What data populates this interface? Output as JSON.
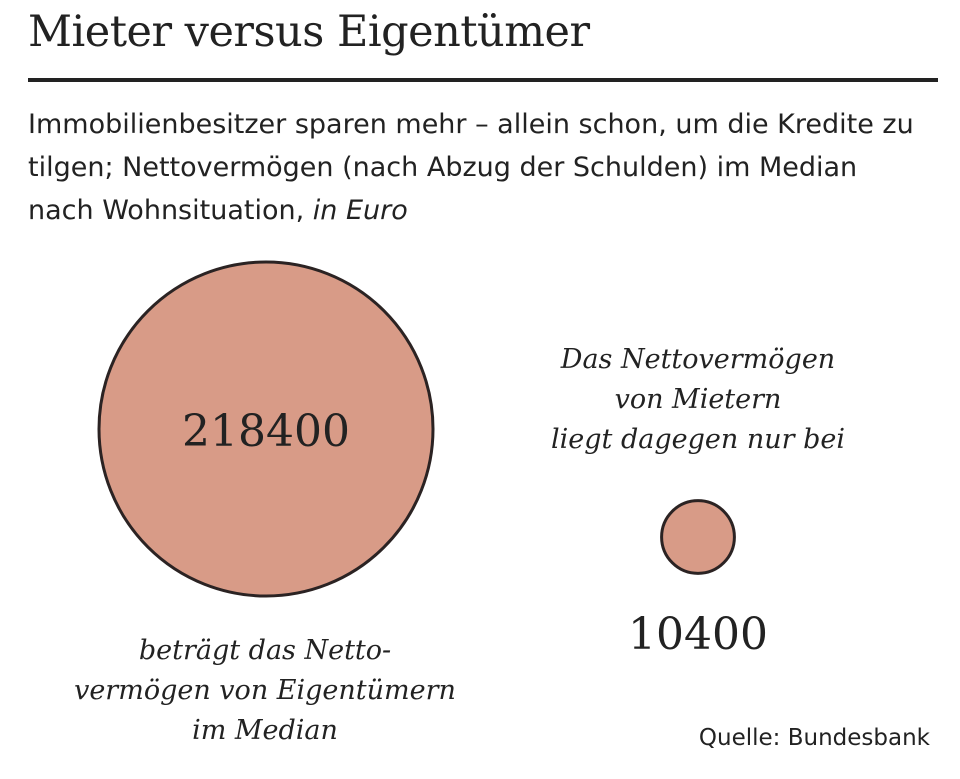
{
  "title": "Mieter versus Eigentümer",
  "subtitle": "Immobilienbesitzer sparen mehr – allein schon, um die Kredite zu tilgen; Nettovermögen (nach Abzug der Schulden) im Median nach Wohnsituation,",
  "unit": "in Euro",
  "source": "Quelle: Bundesbank",
  "colors": {
    "bubble_fill": "#d89b87",
    "bubble_stroke": "#2b2323",
    "text": "#222222"
  },
  "chart_data": {
    "type": "bubble",
    "scale": "area proportional to value",
    "categories": [
      "Eigentümer",
      "Mieter"
    ],
    "values": [
      218400,
      10400
    ],
    "value_labels": [
      "218400",
      "10400"
    ],
    "annotations": [
      "beträgt das Netto-\nvermögen von Eigentümern\nim Median",
      "Das Nettovermögen\nvon Mietern\nliegt dagegen nur bei"
    ]
  }
}
